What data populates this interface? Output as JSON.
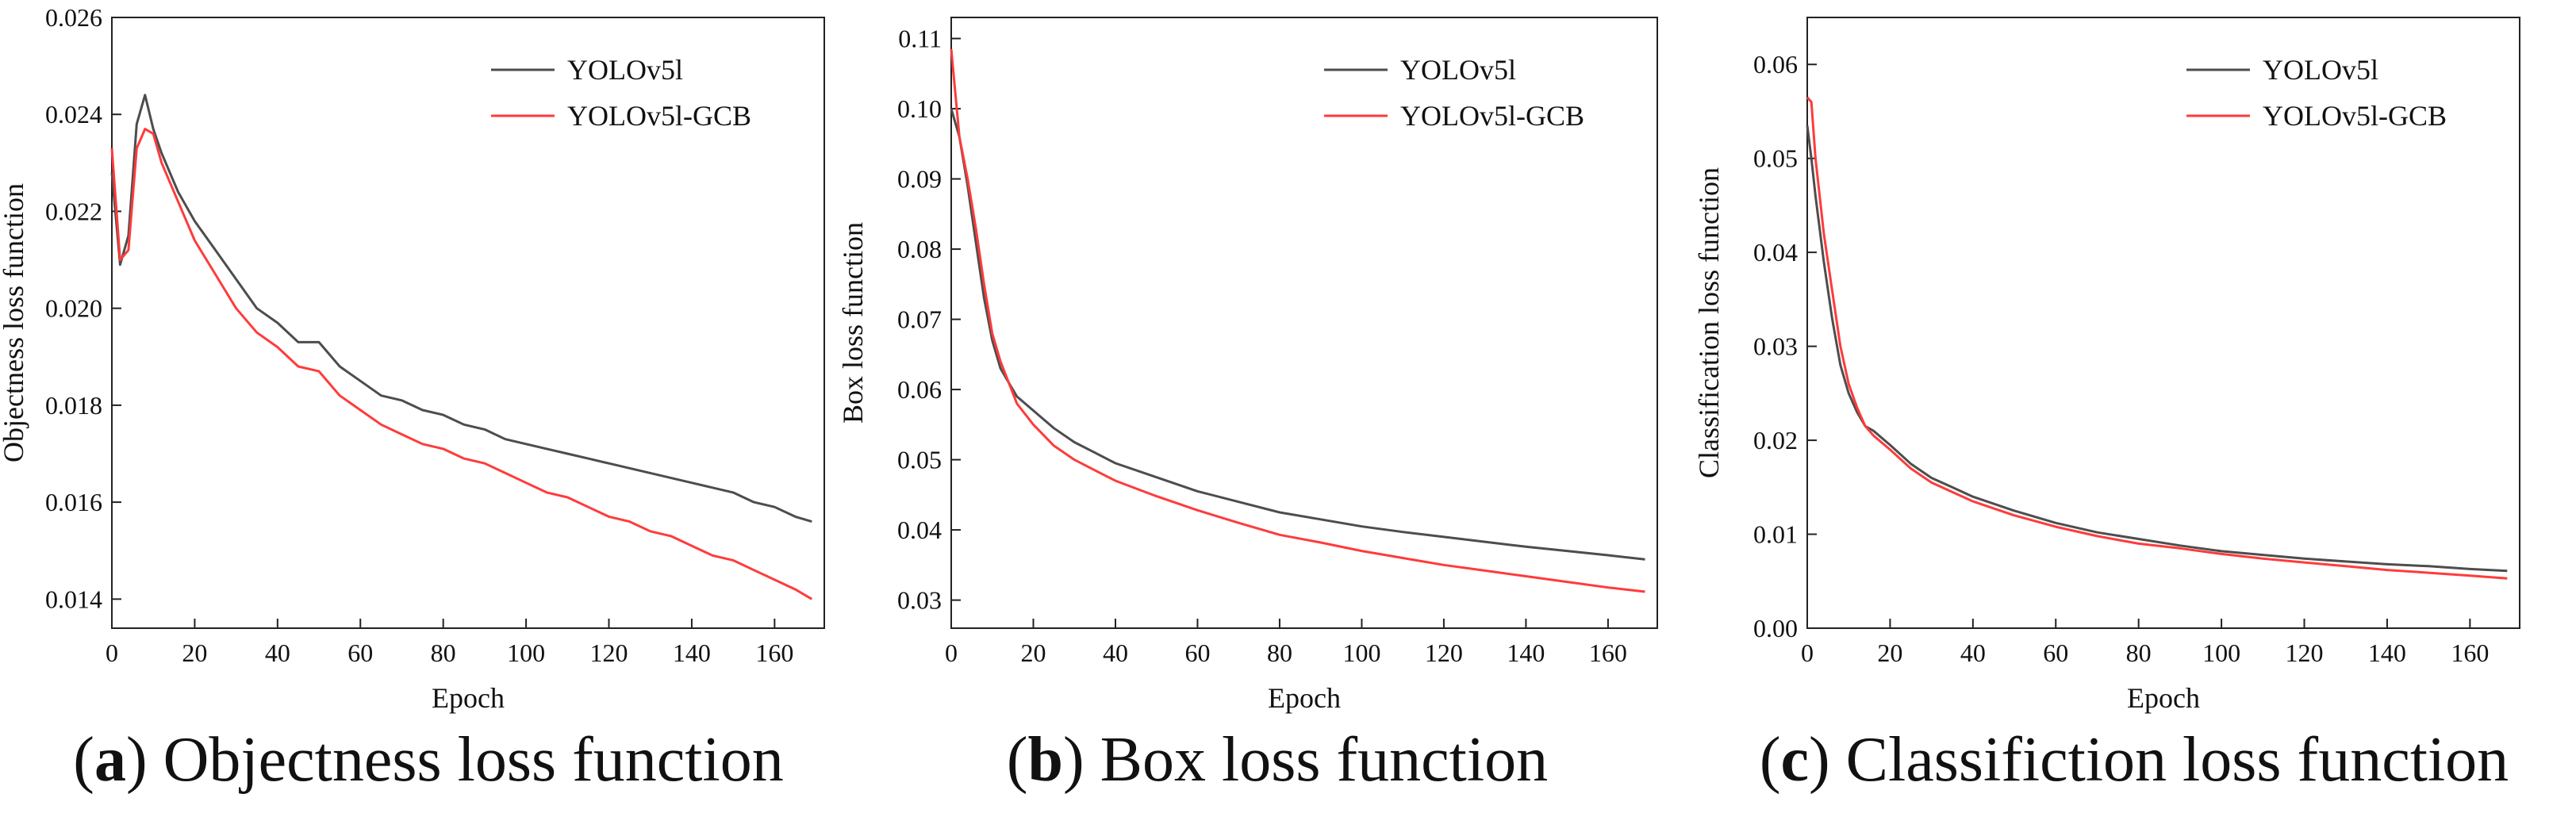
{
  "figure": {
    "captions": [
      {
        "letter": "a",
        "text": " Objectness loss function"
      },
      {
        "letter": "b",
        "text": " Box loss function"
      },
      {
        "letter": "c",
        "text": " Classifiction loss function"
      }
    ]
  },
  "colors": {
    "series_a": "#4d4d4d",
    "series_b": "#ff3b3b"
  },
  "chart_data": [
    {
      "type": "line",
      "title": "",
      "xlabel": "Epoch",
      "ylabel": "Objectness loss function",
      "xlim": [
        0,
        172
      ],
      "ylim": [
        0.0134,
        0.026
      ],
      "xticks": [
        0,
        20,
        40,
        60,
        80,
        100,
        120,
        140,
        160
      ],
      "yticks": [
        0.014,
        0.016,
        0.018,
        0.02,
        0.022,
        0.024,
        0.026
      ],
      "ytick_labels": [
        "0.014",
        "0.016",
        "0.018",
        "0.020",
        "0.022",
        "0.024",
        "0.026"
      ],
      "legend": "top-right",
      "series": [
        {
          "name": "YOLOv5l",
          "x": [
            0,
            2,
            4,
            6,
            8,
            10,
            12,
            16,
            20,
            25,
            30,
            35,
            40,
            45,
            50,
            55,
            60,
            65,
            70,
            75,
            80,
            85,
            90,
            95,
            100,
            105,
            110,
            115,
            120,
            125,
            130,
            135,
            140,
            145,
            150,
            155,
            160,
            165,
            169
          ],
          "values": [
            0.0228,
            0.0209,
            0.0215,
            0.0238,
            0.0244,
            0.0237,
            0.0232,
            0.0224,
            0.0218,
            0.0212,
            0.0206,
            0.02,
            0.0197,
            0.0193,
            0.0193,
            0.0188,
            0.0185,
            0.0182,
            0.0181,
            0.0179,
            0.0178,
            0.0176,
            0.0175,
            0.0173,
            0.0172,
            0.0171,
            0.017,
            0.0169,
            0.0168,
            0.0167,
            0.0166,
            0.0165,
            0.0164,
            0.0163,
            0.0162,
            0.016,
            0.0159,
            0.0157,
            0.0156
          ]
        },
        {
          "name": "YOLOv5l-GCB",
          "x": [
            0,
            2,
            4,
            6,
            8,
            10,
            12,
            16,
            20,
            25,
            30,
            35,
            40,
            45,
            50,
            55,
            60,
            65,
            70,
            75,
            80,
            85,
            90,
            95,
            100,
            105,
            110,
            115,
            120,
            125,
            130,
            135,
            140,
            145,
            150,
            155,
            160,
            165,
            169
          ],
          "values": [
            0.0233,
            0.021,
            0.0212,
            0.0233,
            0.0237,
            0.0236,
            0.023,
            0.0222,
            0.0214,
            0.0207,
            0.02,
            0.0195,
            0.0192,
            0.0188,
            0.0187,
            0.0182,
            0.0179,
            0.0176,
            0.0174,
            0.0172,
            0.0171,
            0.0169,
            0.0168,
            0.0166,
            0.0164,
            0.0162,
            0.0161,
            0.0159,
            0.0157,
            0.0156,
            0.0154,
            0.0153,
            0.0151,
            0.0149,
            0.0148,
            0.0146,
            0.0144,
            0.0142,
            0.014
          ]
        }
      ]
    },
    {
      "type": "line",
      "title": "",
      "xlabel": "Epoch",
      "ylabel": "Box loss function",
      "xlim": [
        0,
        172
      ],
      "ylim": [
        0.026,
        0.113
      ],
      "xticks": [
        0,
        20,
        40,
        60,
        80,
        100,
        120,
        140,
        160
      ],
      "yticks": [
        0.03,
        0.04,
        0.05,
        0.06,
        0.07,
        0.08,
        0.09,
        0.1,
        0.11
      ],
      "ytick_labels": [
        "0.03",
        "0.04",
        "0.05",
        "0.06",
        "0.07",
        "0.08",
        "0.09",
        "0.10",
        "0.11"
      ],
      "legend": "top-right",
      "series": [
        {
          "name": "YOLOv5l",
          "x": [
            0,
            2,
            4,
            6,
            8,
            10,
            12,
            14,
            16,
            20,
            25,
            30,
            35,
            40,
            50,
            60,
            70,
            80,
            90,
            100,
            110,
            120,
            130,
            140,
            150,
            160,
            169
          ],
          "values": [
            0.1,
            0.096,
            0.089,
            0.081,
            0.073,
            0.067,
            0.063,
            0.061,
            0.059,
            0.057,
            0.0545,
            0.0525,
            0.051,
            0.0495,
            0.0475,
            0.0455,
            0.044,
            0.0425,
            0.0415,
            0.0405,
            0.0397,
            0.039,
            0.0383,
            0.0376,
            0.037,
            0.0364,
            0.0358
          ]
        },
        {
          "name": "YOLOv5l-GCB",
          "x": [
            0,
            2,
            4,
            6,
            8,
            10,
            12,
            14,
            16,
            20,
            25,
            30,
            35,
            40,
            50,
            60,
            70,
            80,
            90,
            100,
            110,
            120,
            130,
            140,
            150,
            160,
            169
          ],
          "values": [
            0.1085,
            0.096,
            0.09,
            0.083,
            0.075,
            0.068,
            0.064,
            0.061,
            0.058,
            0.055,
            0.052,
            0.05,
            0.0485,
            0.047,
            0.0448,
            0.0428,
            0.041,
            0.0393,
            0.0382,
            0.037,
            0.036,
            0.035,
            0.0342,
            0.0334,
            0.0326,
            0.0318,
            0.0312
          ]
        }
      ]
    },
    {
      "type": "line",
      "title": "",
      "xlabel": "Epoch",
      "ylabel": "Classification loss function",
      "xlim": [
        0,
        172
      ],
      "ylim": [
        0,
        0.065
      ],
      "xticks": [
        0,
        20,
        40,
        60,
        80,
        100,
        120,
        140,
        160
      ],
      "yticks": [
        0.0,
        0.01,
        0.02,
        0.03,
        0.04,
        0.05,
        0.06
      ],
      "ytick_labels": [
        "0.00",
        "0.01",
        "0.02",
        "0.03",
        "0.04",
        "0.05",
        "0.06"
      ],
      "legend": "top-right",
      "series": [
        {
          "name": "YOLOv5l",
          "x": [
            0,
            1,
            2,
            4,
            6,
            8,
            10,
            12,
            14,
            16,
            20,
            25,
            30,
            35,
            40,
            50,
            60,
            70,
            80,
            90,
            100,
            110,
            120,
            130,
            140,
            150,
            160,
            169
          ],
          "values": [
            0.0535,
            0.05,
            0.046,
            0.039,
            0.033,
            0.028,
            0.025,
            0.023,
            0.0215,
            0.021,
            0.0195,
            0.0175,
            0.016,
            0.015,
            0.014,
            0.0125,
            0.0112,
            0.0102,
            0.0095,
            0.0088,
            0.0082,
            0.0078,
            0.0074,
            0.0071,
            0.0068,
            0.0066,
            0.0063,
            0.0061
          ]
        },
        {
          "name": "YOLOv5l-GCB",
          "x": [
            0,
            1,
            2,
            4,
            6,
            8,
            10,
            12,
            14,
            16,
            20,
            25,
            30,
            35,
            40,
            50,
            60,
            70,
            80,
            90,
            100,
            110,
            120,
            130,
            140,
            150,
            160,
            169
          ],
          "values": [
            0.0565,
            0.056,
            0.05,
            0.042,
            0.036,
            0.03,
            0.026,
            0.0235,
            0.0215,
            0.0205,
            0.019,
            0.017,
            0.0155,
            0.0145,
            0.0135,
            0.012,
            0.0108,
            0.0098,
            0.009,
            0.0085,
            0.0079,
            0.0074,
            0.007,
            0.0066,
            0.0062,
            0.0059,
            0.0056,
            0.0053
          ]
        }
      ]
    }
  ]
}
